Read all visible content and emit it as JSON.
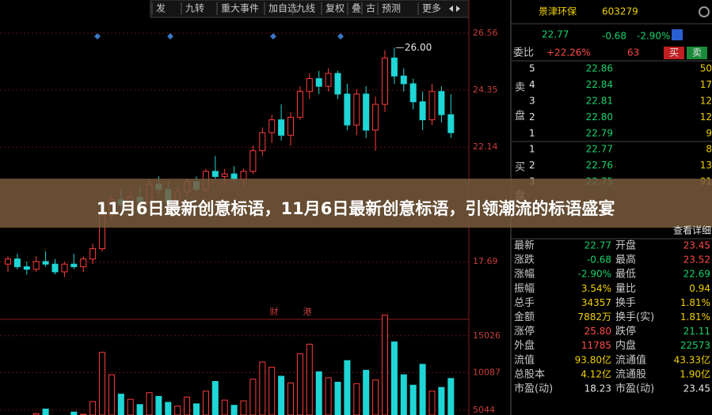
{
  "toolbar": [
    "发",
    "九转",
    "重大事件",
    "加自选",
    "九线",
    "复权",
    "叠",
    "古",
    "预测",
    "更多"
  ],
  "stock": {
    "name": "景津环保",
    "code": "603279",
    "price": "22.77",
    "change": "-0.68",
    "change_pct": "-2.90%"
  },
  "order_ratio": {
    "label": "委比",
    "ratio": "+22.26%",
    "diff": "63",
    "buy": "买",
    "sell": "卖"
  },
  "asks_label": [
    "卖",
    "盘"
  ],
  "bids_label": [
    "买",
    "盘"
  ],
  "asks": [
    [
      "5",
      "22.86",
      "50"
    ],
    [
      "4",
      "22.84",
      "17"
    ],
    [
      "3",
      "22.81",
      "12"
    ],
    [
      "2",
      "22.80",
      "12"
    ],
    [
      "1",
      "22.79",
      "9"
    ]
  ],
  "bids": [
    [
      "1",
      "22.77",
      "8"
    ],
    [
      "2",
      "22.76",
      "13"
    ],
    [
      "3",
      "22.75",
      "91"
    ]
  ],
  "detail_link": "查看详细",
  "stats": [
    [
      "最新",
      "22.77",
      "开盘",
      "23.45"
    ],
    [
      "涨跌",
      "-0.68",
      "最高",
      "23.52"
    ],
    [
      "涨幅",
      "-2.90%",
      "最低",
      "22.69"
    ],
    [
      "振幅",
      "3.54%",
      "量比",
      "0.94"
    ],
    [
      "总手",
      "34357",
      "换手",
      "1.81%"
    ],
    [
      "金额",
      "7882万",
      "换手(实)",
      "1.81%"
    ],
    [
      "涨停",
      "25.80",
      "跌停",
      "21.11"
    ],
    [
      "外盘",
      "11785",
      "内盘",
      "22573"
    ],
    [
      "流值",
      "93.80亿",
      "流通值",
      "43.33亿"
    ],
    [
      "总股本",
      "4.12亿",
      "流通股",
      "1.90亿"
    ],
    [
      "市盈(动)",
      "18.23",
      "市盈(动)",
      "23.45"
    ]
  ],
  "banner": "11月6日最新创意标语，11月6日最新创意标语，引领潮流的标语盛宴",
  "chart_data": {
    "type": "candlestick",
    "ylim": [
      16.04,
      27.85
    ],
    "yticks": [
      26.56,
      24.35,
      22.14,
      17.69
    ],
    "up_color": "#ff3b3b",
    "down_color": "#1fd6d6",
    "open": [
      17.6,
      17.8,
      17.5,
      17.4,
      17.7,
      17.6,
      17.3,
      17.6,
      17.5,
      17.8,
      18.2,
      19.5,
      20.1,
      19.9,
      20.2,
      20.0,
      20.7,
      20.5,
      20.0,
      20.4,
      20.8,
      20.5,
      21.2,
      21.0,
      21.1,
      20.9,
      21.2,
      22.0,
      22.7,
      23.2,
      22.6,
      23.3,
      24.3,
      24.8,
      24.5,
      25.0,
      24.2,
      23.0,
      24.2,
      22.8,
      23.8,
      25.6,
      24.9,
      24.6,
      23.9,
      23.2,
      24.3,
      23.4
    ],
    "high": [
      17.9,
      18.0,
      17.7,
      17.9,
      18.1,
      17.8,
      17.7,
      18.0,
      17.9,
      18.4,
      19.6,
      20.3,
      20.5,
      20.4,
      20.6,
      20.9,
      21.0,
      20.8,
      20.6,
      20.9,
      21.0,
      21.3,
      21.8,
      21.3,
      21.4,
      21.3,
      22.2,
      22.9,
      23.4,
      23.8,
      23.5,
      24.5,
      25.0,
      25.1,
      25.2,
      25.1,
      24.6,
      24.4,
      24.5,
      24.1,
      25.9,
      26.0,
      25.2,
      24.8,
      24.3,
      24.6,
      24.5,
      24.2
    ],
    "low": [
      17.3,
      17.4,
      17.2,
      17.3,
      17.5,
      17.2,
      17.1,
      17.4,
      17.3,
      17.6,
      18.1,
      19.3,
      19.8,
      19.7,
      19.9,
      19.9,
      20.3,
      19.8,
      19.9,
      20.2,
      20.4,
      20.4,
      20.9,
      20.7,
      20.8,
      20.6,
      21.1,
      21.8,
      22.3,
      22.4,
      22.2,
      23.2,
      24.0,
      24.2,
      24.3,
      24.0,
      22.8,
      22.6,
      22.5,
      22.0,
      23.5,
      24.6,
      24.3,
      23.6,
      22.8,
      23.0,
      23.1,
      22.5
    ],
    "close": [
      17.8,
      17.5,
      17.4,
      17.7,
      17.6,
      17.3,
      17.6,
      17.5,
      17.8,
      18.2,
      19.5,
      20.1,
      19.9,
      20.2,
      20.0,
      20.7,
      20.5,
      20.0,
      20.4,
      20.8,
      20.5,
      21.2,
      21.0,
      21.1,
      20.9,
      21.2,
      22.0,
      22.7,
      23.2,
      22.6,
      23.3,
      24.3,
      24.8,
      24.5,
      25.0,
      24.2,
      23.0,
      24.2,
      22.8,
      23.8,
      25.6,
      24.9,
      24.6,
      23.9,
      23.2,
      24.3,
      23.4,
      22.7
    ],
    "high_label": "26.00",
    "events": [
      "财",
      "港"
    ],
    "volume": {
      "ylim": [
        4400,
        18500
      ],
      "yticks": [
        15026,
        10087,
        5044
      ],
      "values": [
        3800,
        4200,
        3500,
        4600,
        5200,
        3900,
        4100,
        4800,
        4500,
        6200,
        12800,
        9800,
        7200,
        6500,
        5800,
        7400,
        6900,
        6100,
        5600,
        6800,
        5900,
        7600,
        8900,
        6400,
        5700,
        6300,
        9200,
        11500,
        10800,
        9600,
        8700,
        12600,
        13900,
        10200,
        9400,
        8800,
        11700,
        8600,
        10400,
        9100,
        17800,
        14200,
        9800,
        8400,
        11200,
        7600,
        8100,
        9300
      ]
    }
  }
}
